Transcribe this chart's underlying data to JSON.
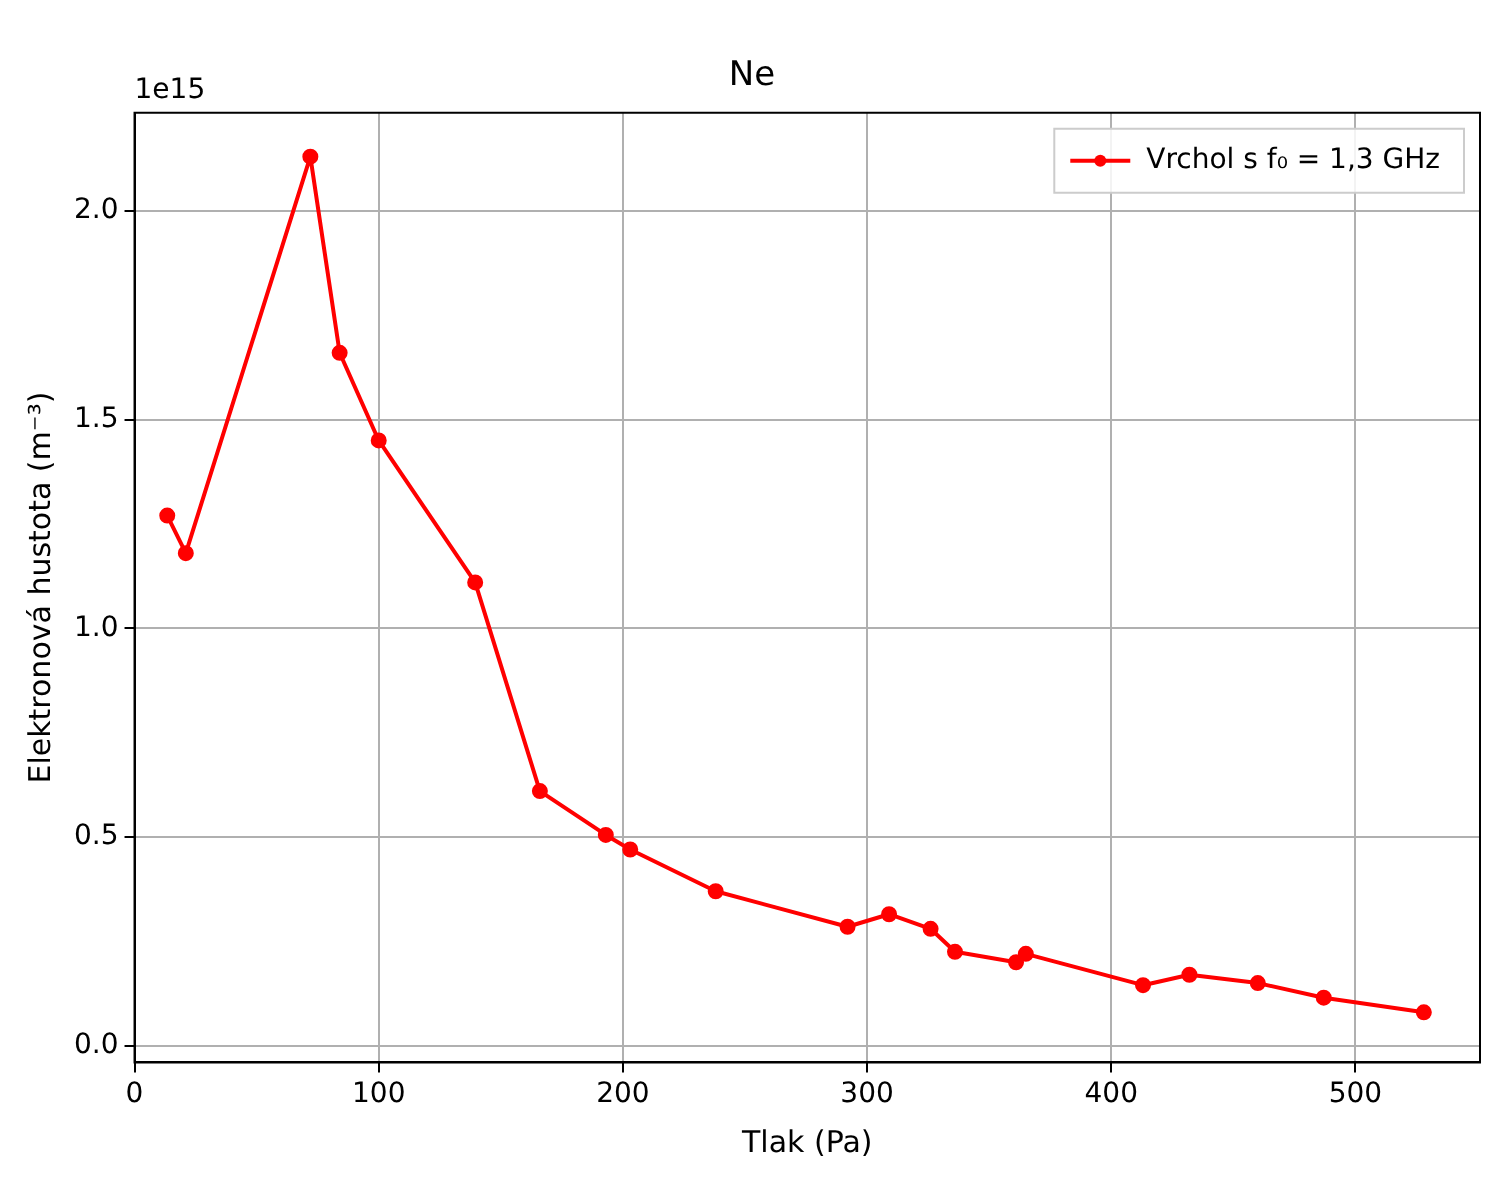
{
  "chart_data": {
    "type": "line",
    "title": "Ne",
    "xlabel": "Tlak (Pa)",
    "ylabel": "Elektronová hustota (m⁻³)",
    "annotations": [
      "1e15"
    ],
    "x": [
      13.4,
      21,
      72,
      84,
      100,
      139.5,
      166,
      193,
      203,
      238,
      292,
      309,
      326,
      336,
      361,
      365,
      413,
      432,
      460,
      487,
      528
    ],
    "series": [
      {
        "name": "Vrchol s f₀ = 1,3 GHz",
        "color": "#ff0000",
        "values": [
          1.27,
          1.18,
          2.13,
          1.66,
          1.45,
          1.11,
          0.61,
          0.505,
          0.47,
          0.37,
          0.285,
          0.315,
          0.28,
          0.225,
          0.2,
          0.22,
          0.145,
          0.17,
          0.15,
          0.115,
          0.08
        ]
      }
    ],
    "xlim": [
      0,
      551
    ],
    "xticks": [
      0,
      100,
      200,
      300,
      400,
      500
    ],
    "ylim": [
      -0.04,
      2.235
    ],
    "yticks": [
      {
        "value": 0,
        "label": "0.0"
      },
      {
        "value": 0.5,
        "label": "0.5"
      },
      {
        "value": 1,
        "label": "1.0"
      },
      {
        "value": 1.5,
        "label": "1.5"
      },
      {
        "value": 2,
        "label": "2.0"
      }
    ],
    "grid": true,
    "legend": "top right",
    "marker": "circle",
    "line_style": "solid"
  }
}
